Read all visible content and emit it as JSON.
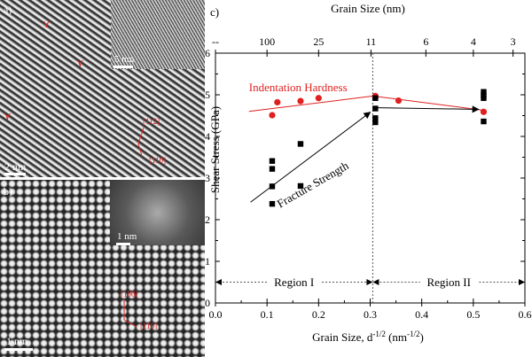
{
  "panels": {
    "a": {
      "label": "a)",
      "scale_main": "2 nm",
      "scale_inset": "5 nm",
      "dir1": "[112]",
      "dir2": "[110]"
    },
    "b": {
      "label": "b)",
      "scale_main": "1 nm",
      "scale_inset": "1 nm",
      "dir1": "[100]",
      "dir2": "[110]"
    }
  },
  "chart_data": {
    "type": "scatter",
    "panel_label": "c)",
    "xlabel": "Grain Size, d⁻¹ᐟ² (nm⁻¹ᐟ²)",
    "xlabel_main": "Grain Size, d",
    "xlabel_sup": "-1/2",
    "xlabel_unit": " (nm",
    "xlabel_unit_sup": "-1/2",
    "xlabel_close": ")",
    "top_xlabel": "Grain Size (nm)",
    "ylabel": "Shear Stress (GPa)",
    "xlim": [
      0.0,
      0.6
    ],
    "ylim": [
      0,
      6
    ],
    "x_ticks": [
      "0.0",
      "0.1",
      "0.2",
      "0.3",
      "0.4",
      "0.5",
      "0.6"
    ],
    "y_ticks": [
      "0",
      "1",
      "2",
      "3",
      "4",
      "5",
      "6"
    ],
    "top_ticks": [
      {
        "label": "--",
        "x": 0.0
      },
      {
        "label": "100",
        "x": 0.1
      },
      {
        "label": "25",
        "x": 0.2
      },
      {
        "label": "11",
        "x": 0.3015
      },
      {
        "label": "6",
        "x": 0.408
      },
      {
        "label": "4",
        "x": 0.5
      },
      {
        "label": "3",
        "x": 0.577
      }
    ],
    "series": [
      {
        "name": "Indentation Hardness",
        "color": "#e02020",
        "marker": "circle",
        "points": [
          [
            0.11,
            4.51
          ],
          [
            0.12,
            4.82
          ],
          [
            0.165,
            4.85
          ],
          [
            0.2,
            4.92
          ],
          [
            0.31,
            4.97
          ],
          [
            0.31,
            4.93
          ],
          [
            0.355,
            4.86
          ],
          [
            0.52,
            4.59
          ]
        ]
      },
      {
        "name": "Fracture Strength",
        "color": "#000000",
        "marker": "square",
        "points": [
          [
            0.11,
            3.41
          ],
          [
            0.11,
            3.22
          ],
          [
            0.11,
            2.8
          ],
          [
            0.11,
            2.38
          ],
          [
            0.165,
            3.82
          ],
          [
            0.165,
            2.81
          ],
          [
            0.31,
            4.92
          ],
          [
            0.31,
            4.67
          ],
          [
            0.31,
            4.44
          ],
          [
            0.31,
            4.34
          ],
          [
            0.52,
            5.07
          ],
          [
            0.52,
            4.99
          ],
          [
            0.52,
            4.92
          ],
          [
            0.52,
            4.36
          ]
        ]
      }
    ],
    "trend_lines": [
      {
        "color": "#e02020",
        "arrow": false,
        "from": [
          0.065,
          4.6
        ],
        "to": [
          0.305,
          4.97
        ]
      },
      {
        "color": "#e02020",
        "arrow": false,
        "from": [
          0.305,
          4.97
        ],
        "to": [
          0.525,
          4.62
        ]
      },
      {
        "color": "#000000",
        "arrow": true,
        "from": [
          0.068,
          2.42
        ],
        "to": [
          0.3,
          4.58
        ]
      },
      {
        "color": "#000000",
        "arrow": true,
        "from": [
          0.315,
          4.69
        ],
        "to": [
          0.51,
          4.65
        ]
      }
    ],
    "annotations": [
      {
        "text": "Indentation Hardness",
        "x": 0.065,
        "y": 5.08,
        "color": "#e02020",
        "rotate": 0
      },
      {
        "text": "Fracture Strength",
        "x": 0.125,
        "y": 2.28,
        "color": "#000000",
        "rotate": -30
      }
    ],
    "boundary_x": 0.305,
    "regions": [
      {
        "label": "Region I",
        "x_from": 0.0,
        "x_to": 0.305,
        "y": 0.5
      },
      {
        "label": "Region II",
        "x_from": 0.305,
        "x_to": 0.6,
        "y": 0.5
      }
    ]
  }
}
